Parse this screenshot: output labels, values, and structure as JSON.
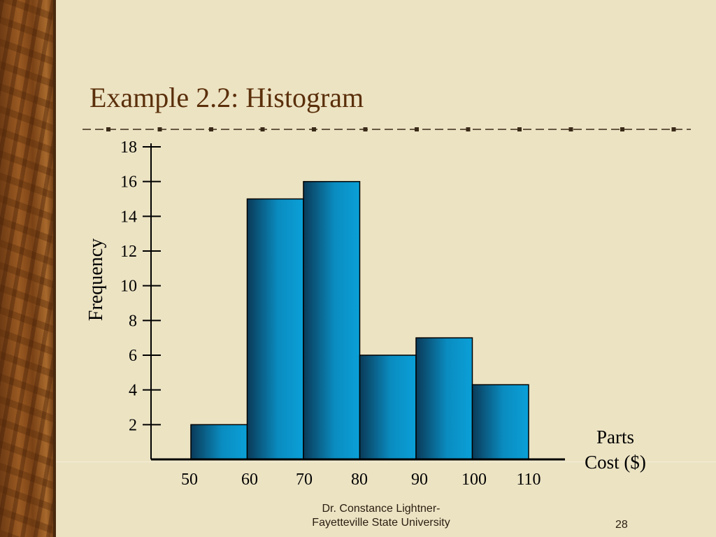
{
  "slide": {
    "title": "Example 2.2: Histogram",
    "author_line1": "Dr. Constance Lightner-",
    "author_line2": "Fayetteville State University",
    "page_number": "28"
  },
  "colors": {
    "background": "#ece3c3",
    "title": "#5a2f0a",
    "bar_light": "#0a9ad0",
    "bar_dark": "#0a3a58",
    "axis": "#000000"
  },
  "chart_data": {
    "type": "bar",
    "title": "",
    "xlabel": "Parts\nCost ($)",
    "ylabel": "Frequency",
    "x_ticks": [
      "50",
      "60",
      "70",
      "80",
      "90",
      "100",
      "110"
    ],
    "y_ticks": [
      "2",
      "4",
      "6",
      "8",
      "10",
      "12",
      "14",
      "16",
      "18"
    ],
    "bins": [
      {
        "from": 50,
        "to": 60,
        "value": 2
      },
      {
        "from": 60,
        "to": 70,
        "value": 15
      },
      {
        "from": 70,
        "to": 80,
        "value": 16
      },
      {
        "from": 80,
        "to": 90,
        "value": 6
      },
      {
        "from": 90,
        "to": 100,
        "value": 7
      },
      {
        "from": 100,
        "to": 110,
        "value": 4.3
      }
    ],
    "ylim": [
      0,
      18
    ],
    "xlim": [
      50,
      110
    ],
    "grid": false,
    "legend": "none"
  }
}
